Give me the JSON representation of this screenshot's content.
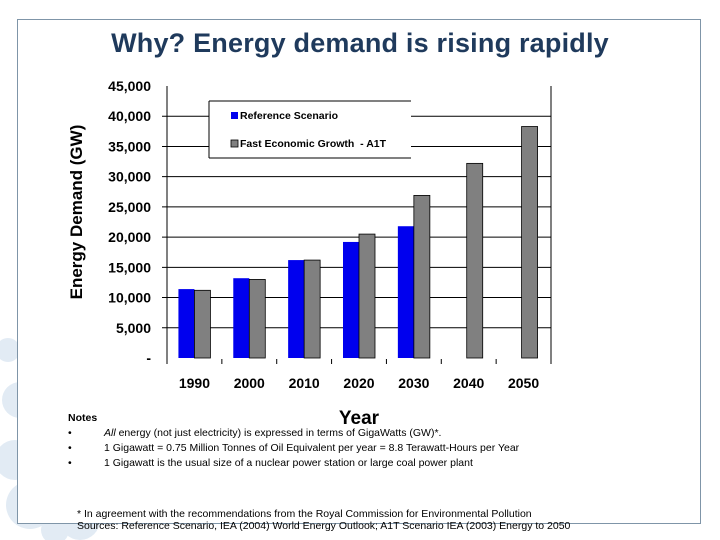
{
  "slide": {
    "title": "Why? Energy demand is rising rapidly"
  },
  "colors": {
    "title": "#1f3a5c",
    "frame": "#7f95a8",
    "reference": "#0000ee",
    "fast_growth": "#808080"
  },
  "chart_data": {
    "type": "bar",
    "title": "",
    "xlabel": "Year",
    "ylabel": "Energy Demand (GW)",
    "categories": [
      "1990",
      "2000",
      "2010",
      "2020",
      "2030",
      "2040",
      "2050"
    ],
    "series": [
      {
        "name": "Reference Scenario",
        "color": "#0000ee",
        "values": [
          11400,
          13200,
          16200,
          19200,
          21800,
          null,
          null
        ]
      },
      {
        "name": "Fast Economic Growth  - A1T",
        "color": "#808080",
        "values": [
          11200,
          13000,
          16200,
          20500,
          26900,
          32200,
          38300
        ]
      }
    ],
    "ylim": [
      0,
      45000
    ],
    "yticks": [
      0,
      5000,
      10000,
      15000,
      20000,
      25000,
      30000,
      35000,
      40000,
      45000
    ],
    "ytick_labels": [
      "-",
      "5,000",
      "10,000",
      "15,000",
      "20,000",
      "25,000",
      "30,000",
      "35,000",
      "40,000",
      "45,000"
    ],
    "grid": "horizontal",
    "legend": "top-left (inside plot)"
  },
  "notes": {
    "heading": "Notes",
    "bullet": "•",
    "items": [
      {
        "lead_italic": "All",
        "text": " energy (not just electricity) is expressed in terms of GigaWatts (GW)*."
      },
      {
        "lead_italic": "",
        "text": "1 Gigawatt = 0.75 Million Tonnes of Oil Equivalent per year = 8.8 Terawatt-Hours per Year"
      },
      {
        "lead_italic": "",
        "text": "1 Gigawatt is the usual size of a nuclear power station or large coal power plant"
      }
    ]
  },
  "footnote": {
    "line1": "* In agreement with the recommendations from the Royal Commission for Environmental Pollution",
    "line2": "Sources: Reference Scenario, IEA (2004) World Energy Outlook; A1T Scenario IEA (2003) Energy to 2050"
  }
}
